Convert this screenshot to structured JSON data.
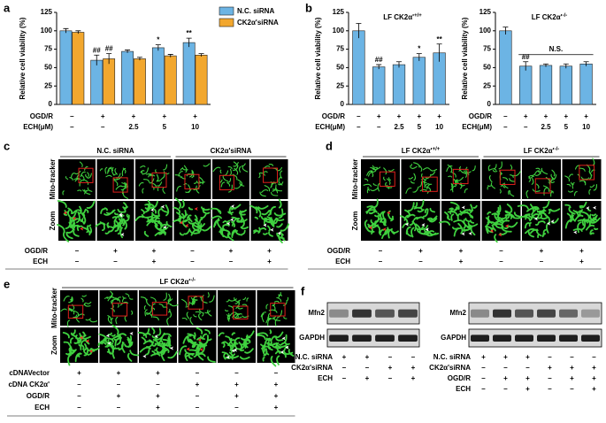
{
  "panel_labels": [
    "a",
    "b",
    "c",
    "d",
    "e",
    "f"
  ],
  "chart_data": [
    {
      "type": "bar",
      "ylabel": "Relative cell viability (%)",
      "ylim": [
        0,
        125
      ],
      "yticks": [
        0,
        25,
        50,
        75,
        100,
        125
      ],
      "legend": "upper right",
      "series": [
        {
          "name": "N.C. siRNA",
          "color": "#6cb4e4",
          "values": [
            100,
            60,
            72,
            77,
            84
          ],
          "errors": [
            3,
            7,
            2,
            4,
            6
          ],
          "marks": [
            null,
            "##",
            null,
            "*",
            "**"
          ]
        },
        {
          "name": "CK2α'siRNA",
          "color": "#f2a72e",
          "values": [
            98,
            62,
            62,
            66,
            67
          ],
          "errors": [
            2,
            7,
            2,
            2,
            2
          ],
          "marks": [
            null,
            "##",
            null,
            null,
            null
          ]
        }
      ],
      "conditions": [
        {
          "label": "OGD/R",
          "values": [
            "–",
            "+",
            "+",
            "+",
            "+"
          ]
        },
        {
          "label": "ECH(μM)",
          "values": [
            "–",
            "–",
            "2.5",
            "5",
            "10"
          ]
        }
      ]
    },
    {
      "type": "bar",
      "title": "LF CK2α'",
      "title_sup": "+/+",
      "ylabel": "Relative cell viability (%)",
      "ylim": [
        0,
        125
      ],
      "yticks": [
        0,
        25,
        50,
        75,
        100,
        125
      ],
      "series": [
        {
          "color": "#6cb4e4",
          "values": [
            100,
            51,
            54,
            64,
            70
          ],
          "errors": [
            10,
            3,
            4,
            5,
            12
          ],
          "marks": [
            null,
            "##",
            null,
            "*",
            "**"
          ]
        }
      ],
      "conditions": [
        {
          "label": "OGD/R",
          "values": [
            "–",
            "+",
            "+",
            "+",
            "+"
          ]
        },
        {
          "label": "ECH(μM)",
          "values": [
            "–",
            "–",
            "2.5",
            "5",
            "10"
          ]
        }
      ]
    },
    {
      "type": "bar",
      "title": "LF CK2α'",
      "title_sup": "-/-",
      "ylabel": "Relative cell viability (%)",
      "ylim": [
        0,
        125
      ],
      "yticks": [
        0,
        25,
        50,
        75,
        100,
        125
      ],
      "bracket_label": "N.S.",
      "series": [
        {
          "color": "#6cb4e4",
          "values": [
            100,
            52,
            53,
            52,
            55
          ],
          "errors": [
            5,
            6,
            2,
            3,
            3
          ],
          "marks": [
            null,
            "##",
            null,
            null,
            null
          ]
        }
      ],
      "conditions": [
        {
          "label": "OGD/R",
          "values": [
            "–",
            "+",
            "+",
            "+",
            "+"
          ]
        },
        {
          "label": "ECH(μM)",
          "values": [
            "–",
            "–",
            "2.5",
            "5",
            "10"
          ]
        }
      ]
    }
  ],
  "panel_c": {
    "headers": [
      {
        "text": "N.C. siRNA"
      },
      {
        "text": "CK2α'siRNA"
      }
    ],
    "row_labels": [
      "Mito-tracker",
      "Zoom"
    ],
    "conditions": [
      {
        "label": "OGD/R",
        "values": [
          "–",
          "+",
          "+",
          "–",
          "+",
          "+"
        ]
      },
      {
        "label": "ECH",
        "values": [
          "–",
          "–",
          "+",
          "–",
          "–",
          "+"
        ]
      }
    ]
  },
  "panel_d": {
    "headers": [
      {
        "text": "LF CK2α'",
        "sup": "+/+"
      },
      {
        "text": "LF CK2α'",
        "sup": "-/-"
      }
    ],
    "row_labels": [
      "Mito-tracker",
      "Zoom"
    ],
    "conditions": [
      {
        "label": "OGD/R",
        "values": [
          "–",
          "+",
          "+",
          "–",
          "+",
          "+"
        ]
      },
      {
        "label": "ECH",
        "values": [
          "–",
          "–",
          "+",
          "–",
          "–",
          "+"
        ]
      }
    ]
  },
  "panel_e": {
    "headers": [
      {
        "text": "LF CK2α'",
        "sup": "-/-"
      }
    ],
    "row_labels": [
      "Mito-tracker",
      "Zoom"
    ],
    "conditions": [
      {
        "label": "cDNAVector",
        "values": [
          "+",
          "+",
          "+",
          "–",
          "–",
          "–"
        ]
      },
      {
        "label": "cDNA CK2α'",
        "values": [
          "–",
          "–",
          "–",
          "+",
          "+",
          "+"
        ]
      },
      {
        "label": "OGD/R",
        "values": [
          "–",
          "+",
          "+",
          "–",
          "+",
          "+"
        ]
      },
      {
        "label": "ECH",
        "values": [
          "–",
          "–",
          "+",
          "–",
          "–",
          "+"
        ]
      }
    ]
  },
  "panel_f": {
    "blots": [
      {
        "bands": [
          "Mfn2",
          "GAPDH"
        ],
        "conditions": [
          {
            "label": "N.C. siRNA",
            "values": [
              "+",
              "+",
              "–",
              "–"
            ]
          },
          {
            "label": "CK2α'siRNA",
            "values": [
              "–",
              "–",
              "+",
              "+"
            ]
          },
          {
            "label": "ECH",
            "values": [
              "–",
              "+",
              "–",
              "+"
            ]
          }
        ]
      },
      {
        "bands": [
          "Mfn2",
          "GAPDH"
        ],
        "conditions": [
          {
            "label": "N.C. siRNA",
            "values": [
              "+",
              "+",
              "+",
              "–",
              "–",
              "–"
            ]
          },
          {
            "label": "CK2α'siRNA",
            "values": [
              "–",
              "–",
              "–",
              "+",
              "+",
              "+"
            ]
          },
          {
            "label": "OGD/R",
            "values": [
              "–",
              "+",
              "+",
              "–",
              "+",
              "+"
            ]
          },
          {
            "label": "ECH",
            "values": [
              "–",
              "–",
              "+",
              "–",
              "–",
              "+"
            ]
          }
        ]
      }
    ]
  }
}
